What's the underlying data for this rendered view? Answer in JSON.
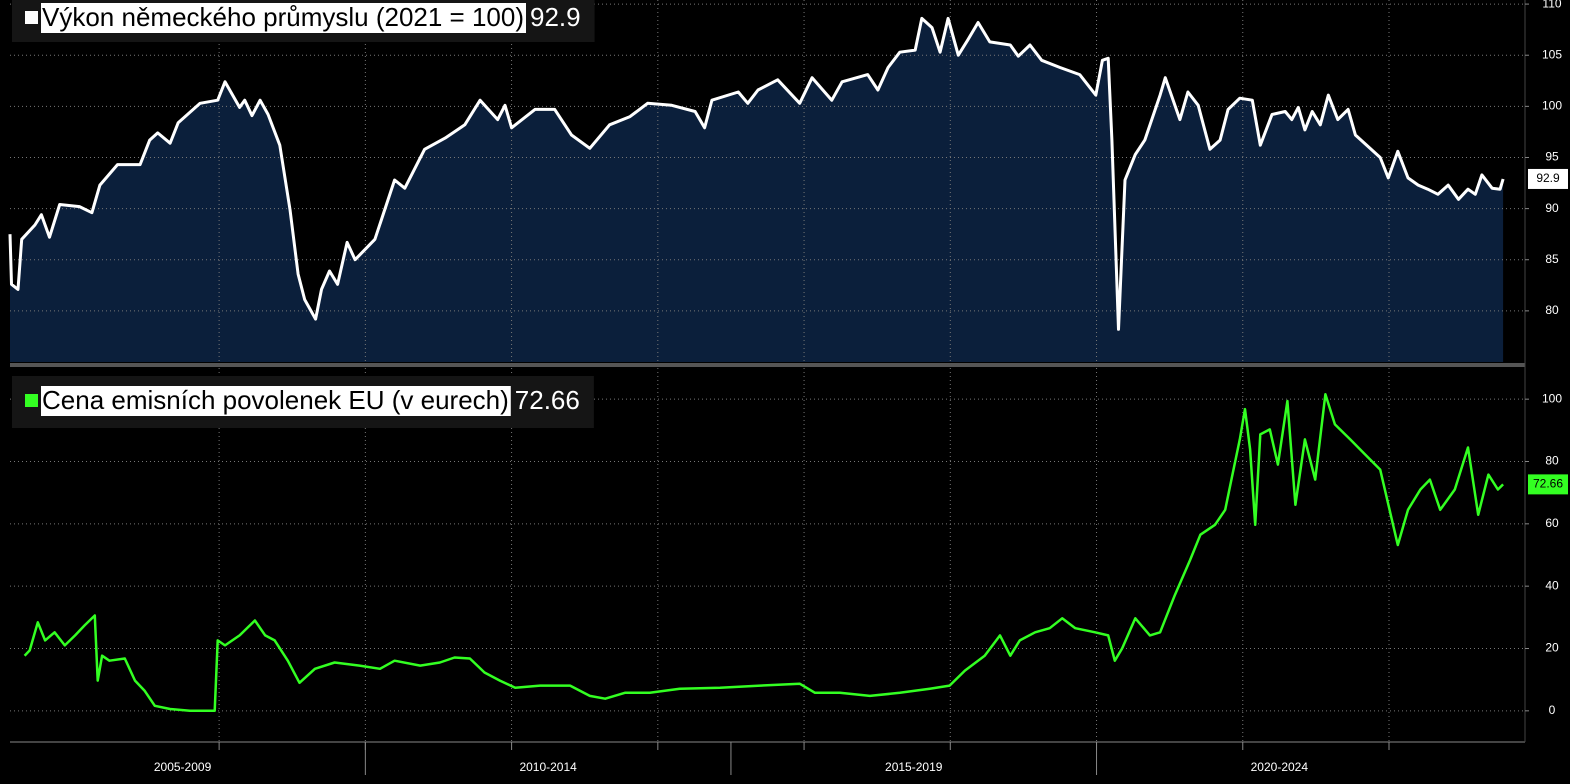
{
  "chart_data": [
    {
      "type": "area",
      "title": "Výkon německého průmyslu (2021 = 100)",
      "last_value": 92.9,
      "xlim": [
        2005.14,
        2025.86
      ],
      "ylim": [
        75,
        110.4
      ],
      "yticks": [
        80,
        85,
        90,
        95,
        100,
        105,
        110
      ],
      "xgrid": [
        2008,
        2010,
        2012,
        2014,
        2016,
        2018,
        2020,
        2022,
        2024
      ],
      "grid": true,
      "series": [
        {
          "color": "#ffffff",
          "fill": "#0b1f3b",
          "x": [
            2005.14,
            2005.16,
            2005.25,
            2005.3,
            2005.48,
            2005.57,
            2005.68,
            2005.82,
            2006.09,
            2006.26,
            2006.37,
            2006.61,
            2006.92,
            2007.05,
            2007.16,
            2007.33,
            2007.44,
            2007.74,
            2007.98,
            2008.08,
            2008.28,
            2008.35,
            2008.45,
            2008.56,
            2008.67,
            2008.83,
            2008.97,
            2009.08,
            2009.17,
            2009.32,
            2009.4,
            2009.51,
            2009.62,
            2009.75,
            2009.86,
            2010.13,
            2010.4,
            2010.54,
            2010.81,
            2011.09,
            2011.36,
            2011.57,
            2011.81,
            2011.91,
            2012.0,
            2012.32,
            2012.59,
            2012.82,
            2013.07,
            2013.34,
            2013.62,
            2013.86,
            2014.19,
            2014.51,
            2014.64,
            2014.74,
            2015.1,
            2015.23,
            2015.37,
            2015.64,
            2015.94,
            2016.11,
            2016.38,
            2016.52,
            2016.87,
            2017.01,
            2017.15,
            2017.31,
            2017.52,
            2017.61,
            2017.75,
            2017.86,
            2017.97,
            2018.11,
            2018.24,
            2018.38,
            2018.54,
            2018.82,
            2018.93,
            2019.09,
            2019.25,
            2019.5,
            2019.77,
            2019.99,
            2020.08,
            2020.16,
            2020.21,
            2020.3,
            2020.39,
            2020.53,
            2020.66,
            2020.87,
            2020.94,
            2021.14,
            2021.25,
            2021.39,
            2021.55,
            2021.69,
            2021.8,
            2021.96,
            2022.13,
            2022.24,
            2022.4,
            2022.58,
            2022.67,
            2022.76,
            2022.85,
            2022.95,
            2023.06,
            2023.17,
            2023.3,
            2023.44,
            2023.54,
            2023.88,
            2023.99,
            2024.12,
            2024.26,
            2024.4,
            2024.53,
            2024.67,
            2024.81,
            2024.95,
            2025.08,
            2025.18,
            2025.27,
            2025.41,
            2025.52,
            2025.56
          ],
          "values": [
            87.5,
            82.6,
            82.1,
            87.0,
            88.4,
            89.4,
            87.2,
            90.4,
            90.2,
            89.6,
            92.3,
            94.3,
            94.3,
            96.7,
            97.4,
            96.4,
            98.4,
            100.3,
            100.6,
            102.4,
            99.9,
            100.6,
            99.1,
            100.6,
            99.2,
            96.2,
            89.9,
            83.6,
            81.1,
            79.2,
            82.1,
            83.9,
            82.6,
            86.7,
            85.0,
            87.0,
            92.8,
            92.0,
            95.8,
            96.9,
            98.2,
            100.6,
            98.7,
            100.1,
            97.9,
            99.7,
            99.7,
            97.2,
            95.9,
            98.2,
            99.0,
            100.3,
            100.1,
            99.5,
            97.9,
            100.6,
            101.4,
            100.3,
            101.6,
            102.6,
            100.3,
            102.8,
            100.6,
            102.4,
            103.1,
            101.6,
            103.8,
            105.3,
            105.5,
            108.6,
            107.7,
            105.3,
            108.6,
            105.0,
            106.5,
            108.2,
            106.3,
            106.0,
            104.9,
            106.0,
            104.5,
            103.8,
            103.1,
            101.1,
            104.5,
            104.7,
            96.7,
            78.2,
            92.8,
            95.3,
            96.7,
            101.1,
            102.8,
            98.7,
            101.4,
            100.1,
            95.8,
            96.7,
            99.7,
            100.8,
            100.6,
            96.2,
            99.2,
            99.5,
            98.7,
            99.9,
            97.7,
            99.5,
            98.2,
            101.1,
            98.7,
            99.7,
            97.2,
            95.0,
            93.0,
            95.6,
            93.0,
            92.3,
            91.9,
            91.4,
            92.3,
            90.9,
            91.9,
            91.4,
            93.3,
            92.0,
            91.9,
            92.9
          ]
        }
      ]
    },
    {
      "type": "line",
      "title": "Cena emisních povolenek EU (v eurech)",
      "last_value": 72.66,
      "xlim": [
        2005.14,
        2025.86
      ],
      "ylim": [
        -10,
        110
      ],
      "yticks": [
        0,
        20,
        40,
        60,
        80,
        100
      ],
      "xgrid": [
        2008,
        2010,
        2012,
        2014,
        2016,
        2018,
        2020,
        2022,
        2024
      ],
      "grid": true,
      "xticks": [
        {
          "value": 2007.5,
          "label": "2005-2009"
        },
        {
          "value": 2012.5,
          "label": "2010-2014"
        },
        {
          "value": 2017.5,
          "label": "2015-2019"
        },
        {
          "value": 2022.5,
          "label": "2020-2024"
        }
      ],
      "xdividers": [
        2010,
        2015,
        2020
      ],
      "series": [
        {
          "color": "#33ff22",
          "x": [
            2005.34,
            2005.41,
            2005.52,
            2005.62,
            2005.75,
            2005.89,
            2006.03,
            2006.16,
            2006.3,
            2006.34,
            2006.4,
            2006.5,
            2006.71,
            2006.85,
            2006.98,
            2007.12,
            2007.33,
            2007.6,
            2007.94,
            2007.98,
            2008.08,
            2008.28,
            2008.49,
            2008.63,
            2008.76,
            2008.94,
            2009.1,
            2009.31,
            2009.58,
            2009.92,
            2010.2,
            2010.4,
            2010.75,
            2011.02,
            2011.22,
            2011.43,
            2011.63,
            2011.84,
            2012.05,
            2012.39,
            2012.8,
            2013.07,
            2013.28,
            2013.55,
            2013.89,
            2014.3,
            2014.85,
            2015.4,
            2015.94,
            2016.15,
            2016.49,
            2016.9,
            2017.31,
            2017.72,
            2017.99,
            2018.2,
            2018.47,
            2018.68,
            2018.82,
            2018.95,
            2019.16,
            2019.36,
            2019.53,
            2019.71,
            2019.98,
            2020.16,
            2020.25,
            2020.35,
            2020.53,
            2020.73,
            2020.87,
            2021.07,
            2021.28,
            2021.42,
            2021.62,
            2021.76,
            2021.85,
            2021.96,
            2022.03,
            2022.1,
            2022.17,
            2022.24,
            2022.37,
            2022.48,
            2022.61,
            2022.72,
            2022.85,
            2022.99,
            2023.13,
            2023.26,
            2023.47,
            2023.67,
            2023.88,
            2024.04,
            2024.12,
            2024.26,
            2024.43,
            2024.56,
            2024.7,
            2024.9,
            2025.08,
            2025.22,
            2025.36,
            2025.49,
            2025.56
          ],
          "values": [
            17.7,
            19.4,
            28.4,
            22.6,
            25.2,
            21.0,
            24.2,
            27.4,
            30.6,
            9.7,
            17.7,
            16.1,
            16.8,
            9.7,
            6.5,
            1.6,
            0.6,
            0,
            0,
            22.6,
            21.0,
            24.2,
            29.0,
            24.2,
            22.6,
            16.1,
            9.0,
            13.5,
            15.5,
            14.5,
            13.5,
            16.1,
            14.5,
            15.5,
            17.1,
            16.8,
            12.3,
            9.7,
            7.4,
            8.1,
            8.1,
            4.8,
            3.9,
            5.8,
            5.8,
            7.1,
            7.4,
            8.1,
            8.7,
            5.8,
            5.8,
            4.8,
            5.8,
            7.1,
            8.1,
            12.9,
            17.7,
            24.2,
            17.7,
            22.6,
            25.2,
            26.5,
            29.7,
            26.5,
            25.2,
            24.2,
            16.1,
            20.0,
            29.7,
            24.2,
            25.2,
            37.1,
            48.4,
            56.5,
            59.7,
            64.5,
            74.8,
            87.1,
            96.8,
            83.9,
            59.7,
            88.7,
            90.3,
            79.0,
            99.4,
            66.1,
            87.1,
            74.2,
            101.6,
            91.9,
            87.1,
            82.3,
            77.4,
            61.3,
            53.2,
            64.5,
            71.0,
            74.2,
            64.5,
            71.0,
            84.5,
            62.9,
            75.8,
            71.0,
            72.66
          ]
        }
      ]
    }
  ]
}
